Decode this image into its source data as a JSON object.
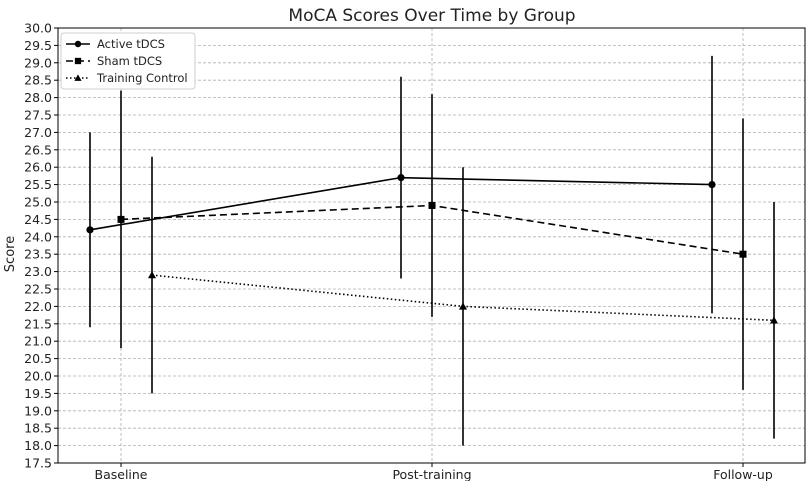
{
  "chart_data": {
    "type": "line",
    "title": "MoCA Scores Over Time by Group",
    "xlabel": "",
    "ylabel": "Score",
    "categories": [
      "Baseline",
      "Post-training",
      "Follow-up"
    ],
    "ylim": [
      17.5,
      30.0
    ],
    "ytick_step": 0.5,
    "grid": true,
    "legend_position": "top-left",
    "series": [
      {
        "name": "Active tDCS",
        "values": [
          24.2,
          25.7,
          25.5
        ],
        "error": [
          2.8,
          2.9,
          3.7
        ],
        "marker": "circle",
        "dash": "solid",
        "color": "#000000"
      },
      {
        "name": "Sham tDCS",
        "values": [
          24.5,
          24.9,
          23.5
        ],
        "error": [
          3.7,
          3.2,
          3.9
        ],
        "marker": "square",
        "dash": "dashed",
        "color": "#000000"
      },
      {
        "name": "Training Control",
        "values": [
          22.9,
          22.0,
          21.6
        ],
        "error": [
          3.4,
          4.0,
          3.4
        ],
        "marker": "triangle",
        "dash": "dotted",
        "color": "#000000"
      }
    ]
  }
}
